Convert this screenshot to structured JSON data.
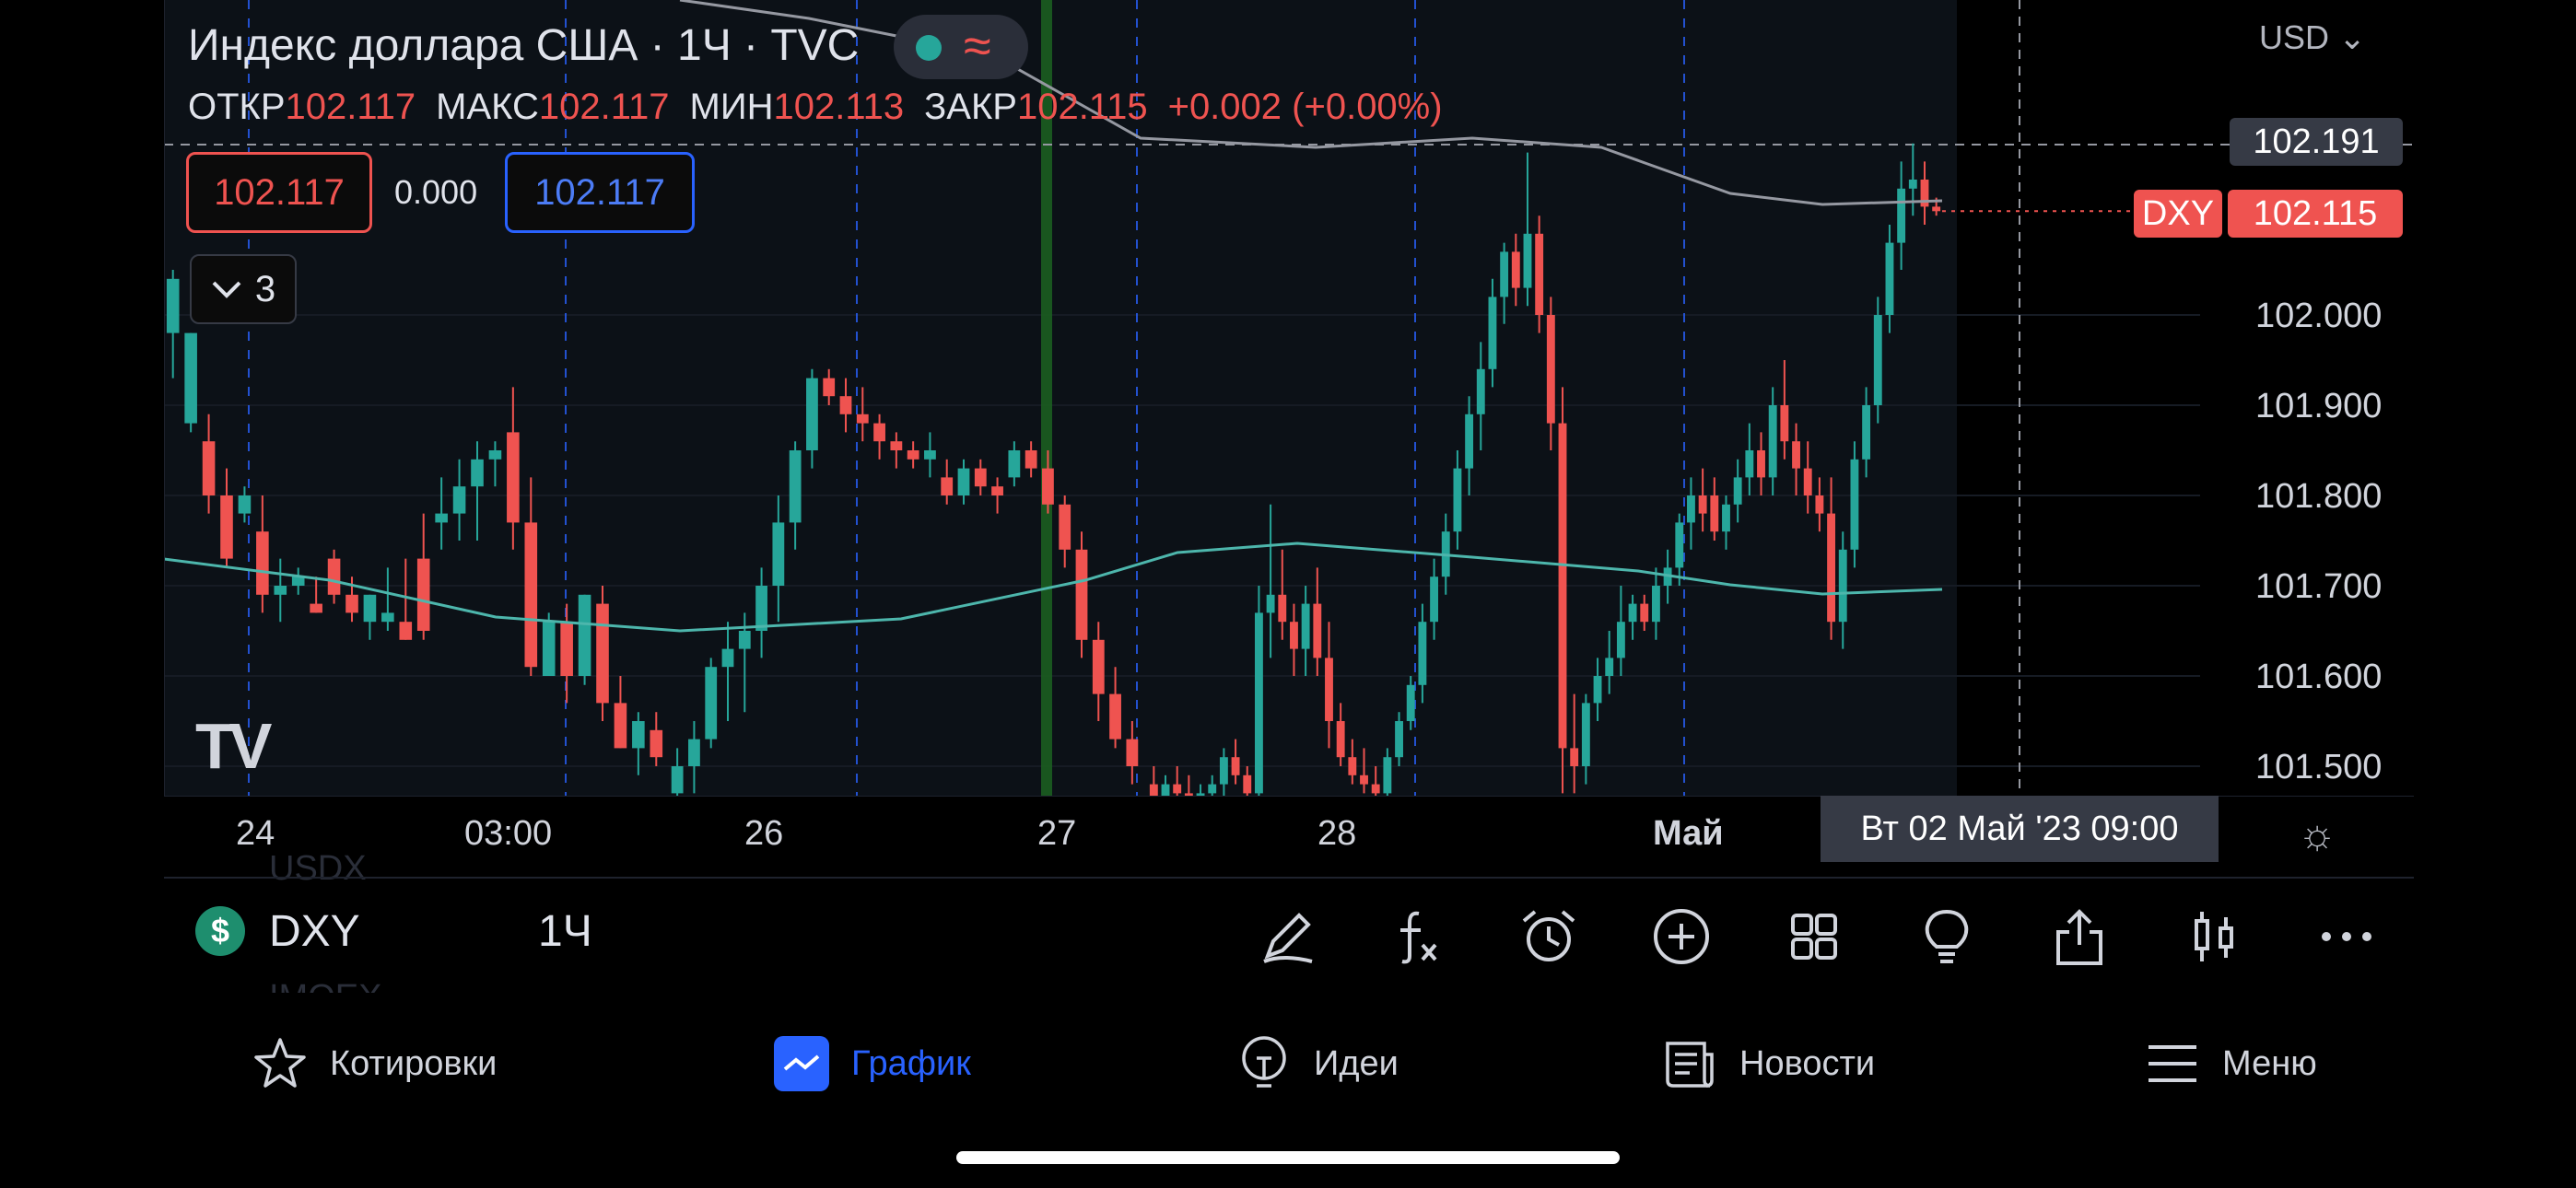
{
  "legend": {
    "title": "Индекс доллара США · 1Ч · TVC",
    "open_label": "ОТКР",
    "open": "102.117",
    "high_label": "МАКС",
    "high": "102.117",
    "low_label": "МИН",
    "low": "102.113",
    "close_label": "ЗАКР",
    "close": "102.115",
    "change": "+0.002 (+0.00%)",
    "status_icon": "market-status-dot",
    "wave_glyph": "≈"
  },
  "trade": {
    "sell": "102.117",
    "spread": "0.000",
    "buy": "102.117"
  },
  "indicators_collapse": {
    "count": "3"
  },
  "currency": "USD",
  "y_ticks": [
    "102.000",
    "101.900",
    "101.800",
    "101.700",
    "101.600",
    "101.500"
  ],
  "price_tags": {
    "crosshair": "102.191",
    "symbol": "DXY",
    "current": "102.115"
  },
  "x_ticks": [
    "24",
    "03:00",
    "26",
    "27",
    "28",
    "Май"
  ],
  "crosshair_time": "Вт 02 Май '23   09:00",
  "ghost_list": [
    "USDX",
    "IMOEX"
  ],
  "toolbar": {
    "symbol_badge": "$",
    "symbol": "DXY",
    "interval": "1Ч",
    "icons": [
      "pen-icon",
      "fx-icon",
      "alarm-icon",
      "plus-circle-icon",
      "grid-icon",
      "bulb-icon",
      "share-icon",
      "candles-icon",
      "more-icon"
    ]
  },
  "tabs": [
    {
      "label": "Котировки",
      "icon": "star-icon"
    },
    {
      "label": "График",
      "icon": "chart-icon",
      "active": true
    },
    {
      "label": "Идеи",
      "icon": "idea-icon"
    },
    {
      "label": "Новости",
      "icon": "news-icon"
    },
    {
      "label": "Меню",
      "icon": "menu-icon"
    }
  ],
  "colors": {
    "up": "#26a69a",
    "down": "#ef5350",
    "accent": "#2962ff",
    "ma_slow": "#9598a1",
    "ma_fast": "#4db6ac"
  },
  "chart_data": {
    "type": "candlestick",
    "y_range": [
      101.465,
      102.27
    ],
    "y_ticks": [
      102.0,
      101.9,
      101.8,
      101.7,
      101.6,
      101.5
    ],
    "x_labels": [
      "24",
      "03:00",
      "26",
      "27",
      "28",
      "Май"
    ],
    "crosshair_price": 102.191,
    "last_price": 102.115,
    "candles": [
      [
        101.98,
        102.05,
        101.93,
        102.04
      ],
      [
        101.88,
        101.98,
        101.87,
        101.98
      ],
      [
        101.86,
        101.89,
        101.78,
        101.8
      ],
      [
        101.8,
        101.83,
        101.72,
        101.73
      ],
      [
        101.78,
        101.81,
        101.77,
        101.8
      ],
      [
        101.76,
        101.8,
        101.67,
        101.69
      ],
      [
        101.69,
        101.73,
        101.66,
        101.7
      ],
      [
        101.7,
        101.72,
        101.69,
        101.71
      ],
      [
        101.68,
        101.71,
        101.67,
        101.67
      ],
      [
        101.73,
        101.74,
        101.68,
        101.69
      ],
      [
        101.69,
        101.71,
        101.66,
        101.67
      ],
      [
        101.66,
        101.69,
        101.64,
        101.69
      ],
      [
        101.66,
        101.72,
        101.65,
        101.67
      ],
      [
        101.66,
        101.73,
        101.64,
        101.64
      ],
      [
        101.73,
        101.78,
        101.64,
        101.65
      ],
      [
        101.77,
        101.82,
        101.74,
        101.78
      ],
      [
        101.78,
        101.84,
        101.75,
        101.81
      ],
      [
        101.81,
        101.86,
        101.75,
        101.84
      ],
      [
        101.84,
        101.86,
        101.81,
        101.85
      ],
      [
        101.87,
        101.92,
        101.74,
        101.77
      ],
      [
        101.77,
        101.82,
        101.6,
        101.61
      ],
      [
        101.6,
        101.67,
        101.6,
        101.66
      ],
      [
        101.66,
        101.68,
        101.57,
        101.6
      ],
      [
        101.6,
        101.69,
        101.59,
        101.69
      ],
      [
        101.68,
        101.7,
        101.55,
        101.57
      ],
      [
        101.57,
        101.6,
        101.52,
        101.52
      ],
      [
        101.52,
        101.56,
        101.49,
        101.55
      ],
      [
        101.54,
        101.56,
        101.5,
        101.51
      ]
    ],
    "candles_b": [
      [
        101.47,
        101.52,
        101.44,
        101.5
      ],
      [
        101.5,
        101.55,
        101.47,
        101.53
      ],
      [
        101.53,
        101.62,
        101.52,
        101.61
      ],
      [
        101.61,
        101.66,
        101.55,
        101.63
      ],
      [
        101.63,
        101.67,
        101.56,
        101.65
      ],
      [
        101.65,
        101.72,
        101.62,
        101.7
      ],
      [
        101.7,
        101.8,
        101.66,
        101.77
      ],
      [
        101.77,
        101.86,
        101.74,
        101.85
      ],
      [
        101.85,
        101.94,
        101.83,
        101.93
      ],
      [
        101.93,
        101.94,
        101.9,
        101.91
      ],
      [
        101.91,
        101.93,
        101.87,
        101.89
      ],
      [
        101.89,
        101.92,
        101.86,
        101.88
      ],
      [
        101.88,
        101.89,
        101.84,
        101.86
      ],
      [
        101.86,
        101.87,
        101.83,
        101.85
      ],
      [
        101.85,
        101.86,
        101.83,
        101.84
      ],
      [
        101.84,
        101.87,
        101.82,
        101.85
      ],
      [
        101.82,
        101.84,
        101.79,
        101.8
      ],
      [
        101.8,
        101.84,
        101.79,
        101.83
      ],
      [
        101.83,
        101.84,
        101.8,
        101.81
      ],
      [
        101.81,
        101.82,
        101.78,
        101.8
      ],
      [
        101.82,
        101.86,
        101.81,
        101.85
      ],
      [
        101.85,
        101.86,
        101.82,
        101.83
      ],
      [
        101.83,
        101.85,
        101.78,
        101.79
      ],
      [
        101.79,
        101.8,
        101.72,
        101.74
      ],
      [
        101.74,
        101.76,
        101.62,
        101.64
      ],
      [
        101.64,
        101.66,
        101.55,
        101.58
      ],
      [
        101.58,
        101.61,
        101.52,
        101.53
      ],
      [
        101.53,
        101.55,
        101.48,
        101.5
      ]
    ],
    "candles_c": [
      [
        101.48,
        101.5,
        101.44,
        101.45
      ],
      [
        101.46,
        101.49,
        101.43,
        101.48
      ],
      [
        101.48,
        101.5,
        101.45,
        101.47
      ],
      [
        101.47,
        101.49,
        101.44,
        101.46
      ],
      [
        101.46,
        101.48,
        101.44,
        101.47
      ],
      [
        101.47,
        101.49,
        101.45,
        101.48
      ],
      [
        101.48,
        101.52,
        101.46,
        101.51
      ],
      [
        101.51,
        101.53,
        101.48,
        101.49
      ],
      [
        101.49,
        101.5,
        101.45,
        101.47
      ],
      [
        101.47,
        101.7,
        101.46,
        101.67
      ],
      [
        101.67,
        101.79,
        101.62,
        101.69
      ],
      [
        101.69,
        101.74,
        101.64,
        101.66
      ],
      [
        101.66,
        101.68,
        101.6,
        101.63
      ],
      [
        101.63,
        101.7,
        101.6,
        101.68
      ],
      [
        101.68,
        101.72,
        101.6,
        101.62
      ],
      [
        101.62,
        101.66,
        101.52,
        101.55
      ],
      [
        101.55,
        101.57,
        101.5,
        101.51
      ],
      [
        101.51,
        101.53,
        101.48,
        101.49
      ],
      [
        101.49,
        101.52,
        101.47,
        101.48
      ],
      [
        101.48,
        101.5,
        101.46,
        101.47
      ],
      [
        101.47,
        101.52,
        101.46,
        101.51
      ],
      [
        101.51,
        101.56,
        101.5,
        101.55
      ],
      [
        101.55,
        101.6,
        101.54,
        101.59
      ],
      [
        101.59,
        101.68,
        101.57,
        101.66
      ],
      [
        101.66,
        101.73,
        101.64,
        101.71
      ],
      [
        101.71,
        101.78,
        101.69,
        101.76
      ],
      [
        101.76,
        101.85,
        101.74,
        101.83
      ],
      [
        101.83,
        101.91,
        101.8,
        101.89
      ],
      [
        101.89,
        101.97,
        101.85,
        101.94
      ],
      [
        101.94,
        102.04,
        101.92,
        102.02
      ],
      [
        102.02,
        102.08,
        101.99,
        102.07
      ],
      [
        102.07,
        102.09,
        102.01,
        102.03
      ],
      [
        102.03,
        102.18,
        102.01,
        102.09
      ],
      [
        102.09,
        102.11,
        101.98,
        102.0
      ],
      [
        102.0,
        102.02,
        101.85,
        101.88
      ],
      [
        101.88,
        101.92,
        101.47,
        101.52
      ],
      [
        101.52,
        101.58,
        101.47,
        101.5
      ],
      [
        101.5,
        101.58,
        101.48,
        101.57
      ],
      [
        101.57,
        101.62,
        101.55,
        101.6
      ],
      [
        101.6,
        101.65,
        101.58,
        101.62
      ],
      [
        101.62,
        101.7,
        101.6,
        101.66
      ],
      [
        101.66,
        101.69,
        101.64,
        101.68
      ],
      [
        101.68,
        101.69,
        101.65,
        101.66
      ],
      [
        101.66,
        101.72,
        101.64,
        101.7
      ],
      [
        101.7,
        101.74,
        101.68,
        101.72
      ],
      [
        101.72,
        101.78,
        101.7,
        101.77
      ],
      [
        101.77,
        101.82,
        101.74,
        101.8
      ],
      [
        101.8,
        101.83,
        101.76,
        101.78
      ],
      [
        101.8,
        101.82,
        101.75,
        101.76
      ],
      [
        101.76,
        101.8,
        101.74,
        101.79
      ],
      [
        101.79,
        101.84,
        101.77,
        101.82
      ],
      [
        101.82,
        101.88,
        101.8,
        101.85
      ],
      [
        101.85,
        101.87,
        101.8,
        101.82
      ],
      [
        101.82,
        101.92,
        101.8,
        101.9
      ],
      [
        101.9,
        101.95,
        101.84,
        101.86
      ],
      [
        101.86,
        101.88,
        101.8,
        101.83
      ],
      [
        101.83,
        101.86,
        101.78,
        101.8
      ],
      [
        101.8,
        101.82,
        101.76,
        101.78
      ],
      [
        101.78,
        101.82,
        101.64,
        101.66
      ],
      [
        101.66,
        101.76,
        101.63,
        101.74
      ],
      [
        101.74,
        101.86,
        101.72,
        101.84
      ],
      [
        101.84,
        101.92,
        101.82,
        101.9
      ],
      [
        101.9,
        102.02,
        101.88,
        102.0
      ],
      [
        102.0,
        102.1,
        101.98,
        102.08
      ],
      [
        102.08,
        102.17,
        102.05,
        102.14
      ],
      [
        102.14,
        102.19,
        102.11,
        102.15
      ],
      [
        102.15,
        102.17,
        102.1,
        102.12
      ],
      [
        102.12,
        102.13,
        102.11,
        102.115
      ]
    ]
  }
}
